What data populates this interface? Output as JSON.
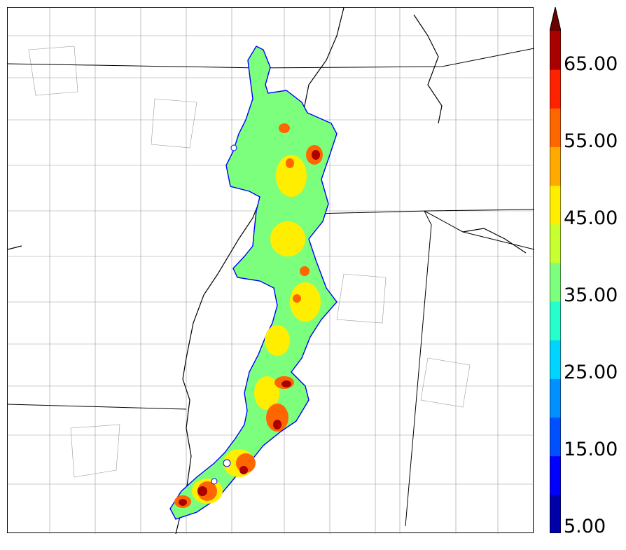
{
  "colorbar": {
    "labels": [
      "5.00",
      "15.00",
      "25.00",
      "35.00",
      "45.00",
      "55.00",
      "65.00"
    ],
    "min": 5,
    "max": 70,
    "step": 5,
    "extend": "max",
    "colors": [
      "#0000aa",
      "#0000ff",
      "#0050ff",
      "#0090ff",
      "#00d4ff",
      "#26ffcc",
      "#7cff7c",
      "#c8ff30",
      "#ffee00",
      "#ffaa00",
      "#ff6600",
      "#ff2200",
      "#aa0000",
      "#6b0000"
    ]
  },
  "map": {
    "field_colors": {
      "outline": "#0000ff",
      "base": "#7cff7c",
      "moderate": "#ffee00",
      "high": "#ff6600",
      "extreme": "#aa0000",
      "boundary_state": "#000000",
      "boundary_county": "#9a9a9a"
    }
  }
}
